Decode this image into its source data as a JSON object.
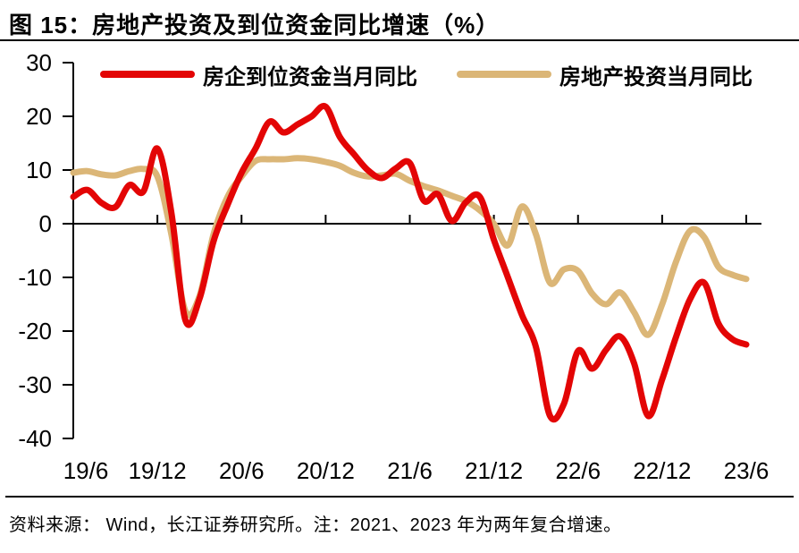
{
  "title": "图 15：房地产投资及到位资金同比增速（%）",
  "footer": "资料来源： Wind，长江证券研究所。注：2021、2023 年为两年复合增速。",
  "colors": {
    "funds_line": "#E30505",
    "investment_line": "#DBB677",
    "axis": "#000000"
  },
  "legend": {
    "items": [
      {
        "label": "房企到位资金当月同比",
        "series": "funds"
      },
      {
        "label": "房地产投资当月同比",
        "series": "investment"
      }
    ]
  },
  "chart_data": {
    "type": "line",
    "smoothed": true,
    "grid": false,
    "legend_position": "top",
    "title": "图 15：房地产投资及到位资金同比增速（%）",
    "xlabel": "",
    "ylabel": "",
    "ylim": [
      -40,
      30
    ],
    "y_ticks": [
      30,
      20,
      10,
      0,
      -10,
      -20,
      -30,
      -40
    ],
    "x_tick_labels": [
      "19/6",
      "19/12",
      "20/6",
      "20/12",
      "21/6",
      "21/12",
      "22/6",
      "22/12",
      "23/6"
    ],
    "x": [
      "19/6",
      "19/7",
      "19/8",
      "19/9",
      "19/10",
      "19/11",
      "19/12",
      "20/1",
      "20/2",
      "20/3",
      "20/4",
      "20/5",
      "20/6",
      "20/7",
      "20/8",
      "20/9",
      "20/10",
      "20/11",
      "20/12",
      "21/1",
      "21/2",
      "21/3",
      "21/4",
      "21/5",
      "21/6",
      "21/7",
      "21/8",
      "21/9",
      "21/10",
      "21/11",
      "21/12",
      "22/1",
      "22/2",
      "22/3",
      "22/4",
      "22/5",
      "22/6",
      "22/7",
      "22/8",
      "22/9",
      "22/10",
      "22/11",
      "22/12",
      "23/1",
      "23/2",
      "23/3",
      "23/4",
      "23/5",
      "23/6"
    ],
    "series": [
      {
        "name": "房企到位资金当月同比",
        "color": "#E30505",
        "values": [
          5.0,
          6.3,
          3.9,
          3.1,
          7.2,
          6.0,
          14.0,
          2.0,
          -18.0,
          -14.0,
          -3.3,
          3.5,
          9.5,
          14.0,
          19.0,
          17.0,
          18.5,
          20.0,
          21.8,
          16.2,
          13.0,
          10.0,
          8.5,
          10.3,
          11.3,
          4.3,
          5.5,
          0.5,
          4.0,
          5.0,
          -3.0,
          -10.0,
          -17.0,
          -23.0,
          -35.8,
          -33.5,
          -23.7,
          -27.0,
          -23.5,
          -21.0,
          -26.0,
          -35.8,
          -29.0,
          -21.0,
          -14.0,
          -11.0,
          -18.5,
          -21.5,
          -22.5
        ]
      },
      {
        "name": "房地产投资当月同比",
        "color": "#DBB677",
        "values": [
          9.5,
          9.8,
          9.2,
          9.0,
          9.8,
          10.2,
          8.8,
          -2.0,
          -16.3,
          -13.5,
          -2.0,
          5.0,
          8.8,
          11.7,
          12.0,
          12.0,
          12.2,
          12.0,
          11.5,
          10.8,
          9.5,
          8.8,
          9.0,
          9.3,
          8.0,
          7.0,
          6.2,
          5.2,
          4.2,
          2.5,
          0.0,
          -4.0,
          3.2,
          -2.0,
          -11.0,
          -8.5,
          -8.8,
          -13.0,
          -15.0,
          -12.8,
          -16.5,
          -20.7,
          -15.0,
          -7.0,
          -1.3,
          -2.5,
          -8.0,
          -9.5,
          -10.3
        ]
      }
    ]
  }
}
